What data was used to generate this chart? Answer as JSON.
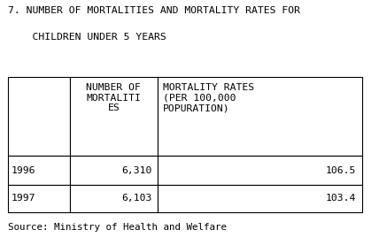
{
  "title_line1": "7. NUMBER OF MORTALITIES AND MORTALITY RATES FOR",
  "title_line2": "    CHILDREN UNDER 5 YEARS",
  "col_headers": [
    "",
    "NUMBER OF\nMORTALITI\nES",
    "MORTALITY RATES\n(PER 100,000\nPOPURATION)"
  ],
  "rows": [
    [
      "1996",
      "6,310",
      "106.5"
    ],
    [
      "1997",
      "6,103",
      "103.4"
    ]
  ],
  "source": "Source: Ministry of Health and Welfare",
  "bg_color": "#ffffff",
  "text_color": "#000000",
  "table_edge_color": "#000000",
  "title_fontsize": 8.2,
  "header_fontsize": 8.2,
  "data_fontsize": 8.2,
  "source_fontsize": 7.8,
  "col_bounds": [
    0.02,
    0.185,
    0.415,
    0.955
  ],
  "row_bounds": [
    0.685,
    0.365,
    0.245,
    0.135
  ]
}
